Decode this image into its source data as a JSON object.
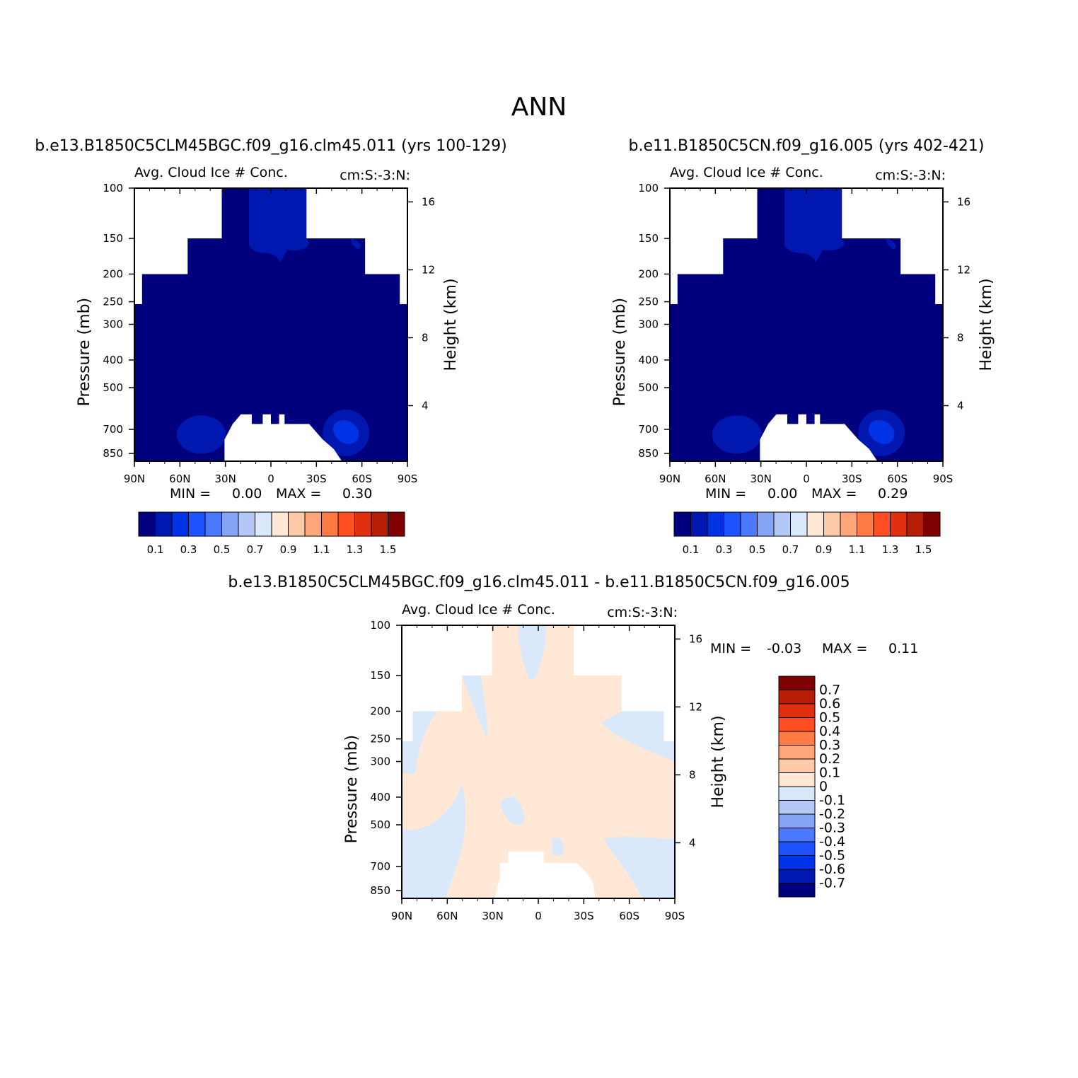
{
  "figure_title": "ANN",
  "palette_main": [
    "#00007f",
    "#0018b0",
    "#0033e6",
    "#1f52ff",
    "#4a78ff",
    "#85a4f5",
    "#b3c8f5",
    "#d9e8fa",
    "#ffe9d6",
    "#ffcaaa",
    "#ffa57a",
    "#ff7b45",
    "#ff4e22",
    "#e03010",
    "#b51e05",
    "#7f0000"
  ],
  "chart_data": [
    {
      "type": "heatmap",
      "title": "b.e13.B1850C5CLM45BGC.f09_g16.clm45.011 (yrs 100-129)",
      "subtitle_left": "Avg. Cloud Ice # Conc.",
      "subtitle_right": "cm:S:-3:N:",
      "xlabel": "",
      "ylabel": "Pressure (mb)",
      "ylabel_right": "Height (km)",
      "x_ticks": [
        "90N",
        "60N",
        "30N",
        "0",
        "30S",
        "60S",
        "90S"
      ],
      "y_ticks": [
        "100",
        "150",
        "200",
        "250",
        "300",
        "400",
        "500",
        "700",
        "850"
      ],
      "y_ticks_right": [
        "16",
        "12",
        "8",
        "4"
      ],
      "min_label": "MIN =",
      "min_value": "0.00",
      "max_label": "MAX =",
      "max_value": "0.30",
      "colorbar_labels": [
        "0.1",
        "0.3",
        "0.5",
        "0.7",
        "0.9",
        "1.1",
        "1.3",
        "1.5"
      ]
    },
    {
      "type": "heatmap",
      "title": "b.e11.B1850C5CN.f09_g16.005 (yrs 402-421)",
      "subtitle_left": "Avg. Cloud Ice # Conc.",
      "subtitle_right": "cm:S:-3:N:",
      "xlabel": "",
      "ylabel": "Pressure (mb)",
      "ylabel_right": "Height (km)",
      "x_ticks": [
        "90N",
        "60N",
        "30N",
        "0",
        "30S",
        "60S",
        "90S"
      ],
      "y_ticks": [
        "100",
        "150",
        "200",
        "250",
        "300",
        "400",
        "500",
        "700",
        "850"
      ],
      "y_ticks_right": [
        "16",
        "12",
        "8",
        "4"
      ],
      "min_label": "MIN =",
      "min_value": "0.00",
      "max_label": "MAX =",
      "max_value": "0.29",
      "colorbar_labels": [
        "0.1",
        "0.3",
        "0.5",
        "0.7",
        "0.9",
        "1.1",
        "1.3",
        "1.5"
      ]
    },
    {
      "type": "heatmap",
      "title": "b.e13.B1850C5CLM45BGC.f09_g16.clm45.011 - b.e11.B1850C5CN.f09_g16.005",
      "subtitle_left": "Avg. Cloud Ice # Conc.",
      "subtitle_right": "cm:S:-3:N:",
      "xlabel": "",
      "ylabel": "Pressure (mb)",
      "ylabel_right": "Height (km)",
      "x_ticks": [
        "90N",
        "60N",
        "30N",
        "0",
        "30S",
        "60S",
        "90S"
      ],
      "y_ticks": [
        "100",
        "150",
        "200",
        "250",
        "300",
        "400",
        "500",
        "700",
        "850"
      ],
      "y_ticks_right": [
        "16",
        "12",
        "8",
        "4"
      ],
      "min_label": "MIN =",
      "min_value": "-0.03",
      "max_label": "MAX =",
      "max_value": "0.11",
      "colorbar_labels": [
        "0.7",
        "0.6",
        "0.5",
        "0.4",
        "0.3",
        "0.2",
        "0.1",
        "0",
        "-0.1",
        "-0.2",
        "-0.3",
        "-0.4",
        "-0.5",
        "-0.6",
        "-0.7"
      ]
    }
  ]
}
